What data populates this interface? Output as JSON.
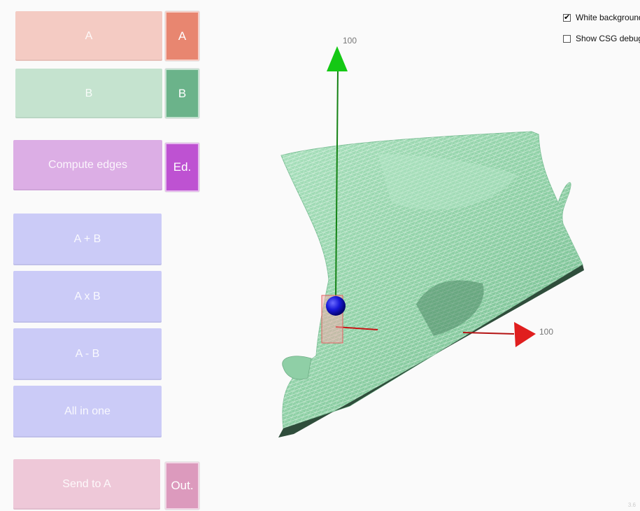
{
  "buttons": {
    "a_wide": "A",
    "a_small": "A",
    "b_wide": "B",
    "b_small": "B",
    "compute_edges": "Compute edges",
    "edges_small": "Ed.",
    "union": "A + B",
    "intersection": "A x B",
    "difference": "A - B",
    "all_in_one": "All in one",
    "output_wide": "Send to A",
    "output_small": "Out."
  },
  "options": {
    "white_background": {
      "label": "White background",
      "checked": true,
      "mark": "✔"
    },
    "show_csg_debug": {
      "label": "Show CSG debug",
      "checked": false,
      "mark": ""
    }
  },
  "axes": {
    "y_label": "100",
    "x_label": "100"
  },
  "colors": {
    "a_wide": "#f4cbc3",
    "a_small": "#e88670",
    "b_wide": "#c5e3cf",
    "b_small": "#6bb38a",
    "edges_wide": "#dcaee5",
    "edges_small": "#be52d2",
    "ops_wide": "#cbcbf7",
    "out_wide": "#eec8d8",
    "out_small": "#dc9abd",
    "mesh": "#8fd4a9",
    "axis_y": "#14c814",
    "axis_x": "#dc1414",
    "sphere": "#1010c8"
  },
  "footer_text": "3.6"
}
